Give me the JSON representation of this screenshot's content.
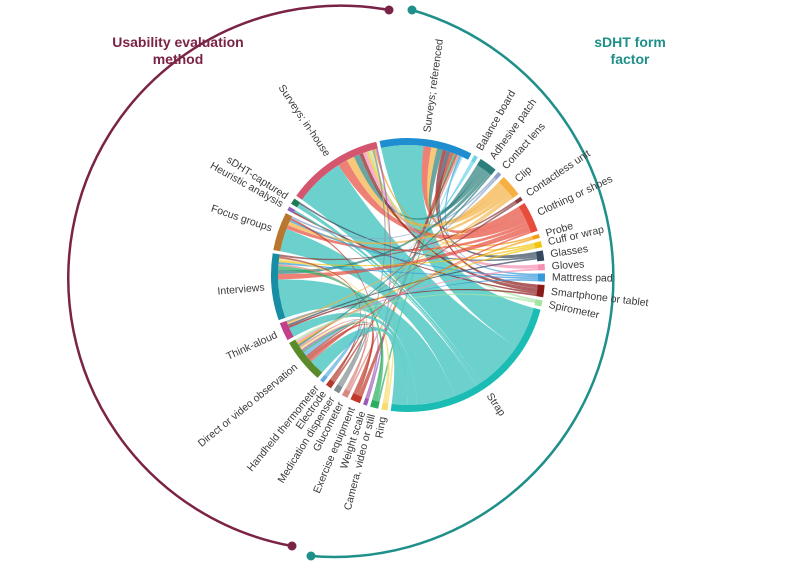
{
  "titles": {
    "left_line1": "Usability evaluation",
    "left_line2": "method",
    "right_line1": "sDHT form",
    "right_line2": "factor"
  },
  "colors": {
    "left_group": "#7b2346",
    "right_group": "#1f8f8a",
    "ribbon_main": "#4cc7c2"
  },
  "segments": [
    {
      "id": "surveys-referenced",
      "label": "Surveys; referenced",
      "side": "method",
      "weight": 46,
      "color": "#1f8ed0"
    },
    {
      "id": "balance-board",
      "label": "Balance board",
      "side": "form",
      "weight": 2,
      "color": "#6fd3e8"
    },
    {
      "id": "adhesive-patch",
      "label": "Adhesive patch",
      "side": "form",
      "weight": 9,
      "color": "#2a7f7c"
    },
    {
      "id": "contact-lens",
      "label": "Contact lens",
      "side": "form",
      "weight": 2,
      "color": "#8aa0c8"
    },
    {
      "id": "clip",
      "label": "Clip",
      "side": "form",
      "weight": 11,
      "color": "#f5b041"
    },
    {
      "id": "contactless-unit",
      "label": "Contactless unit",
      "side": "form",
      "weight": 2,
      "color": "#8a3b3b"
    },
    {
      "id": "clothing-or-shoes",
      "label": "Clothing or shoes",
      "side": "form",
      "weight": 15,
      "color": "#e74c3c"
    },
    {
      "id": "probe",
      "label": "Probe",
      "side": "form",
      "weight": 2,
      "color": "#f39c12"
    },
    {
      "id": "cuff-or-wrap",
      "label": "Cuff or wrap",
      "side": "form",
      "weight": 3,
      "color": "#f1c40f"
    },
    {
      "id": "glasses",
      "label": "Glasses",
      "side": "form",
      "weight": 5,
      "color": "#34495e"
    },
    {
      "id": "gloves",
      "label": "Gloves",
      "side": "form",
      "weight": 3,
      "color": "#f78fb3"
    },
    {
      "id": "mattress-pad",
      "label": "Mattress pad",
      "side": "form",
      "weight": 4,
      "color": "#3498db"
    },
    {
      "id": "smartphone-or-tablet",
      "label": "Smartphone or tablet",
      "side": "form",
      "weight": 6,
      "color": "#8b1a1a"
    },
    {
      "id": "spirometer",
      "label": "Spirometer",
      "side": "form",
      "weight": 3,
      "color": "#a3e4a1"
    },
    {
      "id": "strap",
      "label": "Strap",
      "side": "form",
      "weight": 96,
      "color": "#1abcb4"
    },
    {
      "id": "ring",
      "label": "Ring",
      "side": "form",
      "weight": 3,
      "color": "#f7dc6f"
    },
    {
      "id": "camera",
      "label": "Camera, video or still",
      "side": "form",
      "weight": 4,
      "color": "#27ae60"
    },
    {
      "id": "weight-scale",
      "label": "Weight scale",
      "side": "form",
      "weight": 2,
      "color": "#9b59b6"
    },
    {
      "id": "exercise-equipment",
      "label": "Exercise equipment",
      "side": "form",
      "weight": 5,
      "color": "#c0392b"
    },
    {
      "id": "glucometer",
      "label": "Glucometer",
      "side": "form",
      "weight": 3,
      "color": "#d98880"
    },
    {
      "id": "medication-dispenser",
      "label": "Medication dispenser",
      "side": "form",
      "weight": 3,
      "color": "#7f8c8d"
    },
    {
      "id": "electrode",
      "label": "Electrode",
      "side": "form",
      "weight": 3,
      "color": "#b03a2e"
    },
    {
      "id": "handheld-thermometer",
      "label": "Handheld thermometer",
      "side": "form",
      "weight": 2,
      "color": "#5dade2"
    },
    {
      "id": "direct-or-video-observation",
      "label": "Direct or video observation",
      "side": "method",
      "weight": 22,
      "color": "#5b8a2a"
    },
    {
      "id": "think-aloud",
      "label": "Think-aloud",
      "side": "method",
      "weight": 9,
      "color": "#c2408a"
    },
    {
      "id": "interviews",
      "label": "Interviews",
      "side": "method",
      "weight": 33,
      "color": "#178ea3"
    },
    {
      "id": "focus-groups",
      "label": "Focus groups",
      "side": "method",
      "weight": 19,
      "color": "#b8762e"
    },
    {
      "id": "heuristic-analysis",
      "label": "Heuristic analysis",
      "side": "method",
      "weight": 2,
      "color": "#8e63b5"
    },
    {
      "id": "sdht-captured",
      "label": "sDHT-captured",
      "side": "method",
      "weight": 3,
      "color": "#1f7a55"
    },
    {
      "id": "surveys-in-house",
      "label": "Surveys; in-house",
      "side": "method",
      "weight": 48,
      "color": "#d4556e"
    }
  ],
  "chords": [
    {
      "source": "surveys-referenced",
      "target": "strap",
      "value": 22
    },
    {
      "source": "surveys-referenced",
      "target": "clothing-or-shoes",
      "value": 4
    },
    {
      "source": "surveys-referenced",
      "target": "clip",
      "value": 3
    },
    {
      "source": "surveys-referenced",
      "target": "adhesive-patch",
      "value": 3
    },
    {
      "source": "surveys-referenced",
      "target": "smartphone-or-tablet",
      "value": 2
    },
    {
      "source": "surveys-referenced",
      "target": "glasses",
      "value": 2
    },
    {
      "source": "surveys-referenced",
      "target": "exercise-equipment",
      "value": 2
    },
    {
      "source": "surveys-referenced",
      "target": "camera",
      "value": 1
    },
    {
      "source": "surveys-referenced",
      "target": "electrode",
      "value": 1
    },
    {
      "source": "surveys-referenced",
      "target": "glucometer",
      "value": 1
    },
    {
      "source": "surveys-referenced",
      "target": "mattress-pad",
      "value": 1
    },
    {
      "source": "surveys-referenced",
      "target": "balance-board",
      "value": 1
    },
    {
      "source": "surveys-in-house",
      "target": "strap",
      "value": 26
    },
    {
      "source": "surveys-in-house",
      "target": "clothing-or-shoes",
      "value": 5
    },
    {
      "source": "surveys-in-house",
      "target": "clip",
      "value": 4
    },
    {
      "source": "surveys-in-house",
      "target": "adhesive-patch",
      "value": 3
    },
    {
      "source": "surveys-in-house",
      "target": "smartphone-or-tablet",
      "value": 2
    },
    {
      "source": "surveys-in-house",
      "target": "gloves",
      "value": 2
    },
    {
      "source": "surveys-in-house",
      "target": "cuff-or-wrap",
      "value": 1
    },
    {
      "source": "surveys-in-house",
      "target": "spirometer",
      "value": 1
    },
    {
      "source": "surveys-in-house",
      "target": "ring",
      "value": 1
    },
    {
      "source": "surveys-in-house",
      "target": "medication-dispenser",
      "value": 1
    },
    {
      "source": "surveys-in-house",
      "target": "probe",
      "value": 1
    },
    {
      "source": "surveys-in-house",
      "target": "weight-scale",
      "value": 1
    },
    {
      "source": "sdht-captured",
      "target": "strap",
      "value": 2
    },
    {
      "source": "sdht-captured",
      "target": "glasses",
      "value": 1
    },
    {
      "source": "heuristic-analysis",
      "target": "smartphone-or-tablet",
      "value": 1
    },
    {
      "source": "heuristic-analysis",
      "target": "strap",
      "value": 1
    },
    {
      "source": "focus-groups",
      "target": "strap",
      "value": 12
    },
    {
      "source": "focus-groups",
      "target": "clothing-or-shoes",
      "value": 2
    },
    {
      "source": "focus-groups",
      "target": "clip",
      "value": 2
    },
    {
      "source": "focus-groups",
      "target": "mattress-pad",
      "value": 1
    },
    {
      "source": "focus-groups",
      "target": "exercise-equipment",
      "value": 1
    },
    {
      "source": "focus-groups",
      "target": "contact-lens",
      "value": 1
    },
    {
      "source": "interviews",
      "target": "strap",
      "value": 20
    },
    {
      "source": "interviews",
      "target": "clothing-or-shoes",
      "value": 3
    },
    {
      "source": "interviews",
      "target": "adhesive-patch",
      "value": 2
    },
    {
      "source": "interviews",
      "target": "camera",
      "value": 2
    },
    {
      "source": "interviews",
      "target": "glucometer",
      "value": 1
    },
    {
      "source": "interviews",
      "target": "mattress-pad",
      "value": 1
    },
    {
      "source": "interviews",
      "target": "cuff-or-wrap",
      "value": 1
    },
    {
      "source": "interviews",
      "target": "ring",
      "value": 1
    },
    {
      "source": "interviews",
      "target": "electrode",
      "value": 1
    },
    {
      "source": "interviews",
      "target": "contactless-unit",
      "value": 1
    },
    {
      "source": "think-aloud",
      "target": "strap",
      "value": 5
    },
    {
      "source": "think-aloud",
      "target": "smartphone-or-tablet",
      "value": 1
    },
    {
      "source": "think-aloud",
      "target": "glasses",
      "value": 1
    },
    {
      "source": "think-aloud",
      "target": "clip",
      "value": 1
    },
    {
      "source": "think-aloud",
      "target": "medication-dispenser",
      "value": 1
    },
    {
      "source": "direct-or-video-observation",
      "target": "strap",
      "value": 8
    },
    {
      "source": "direct-or-video-observation",
      "target": "clothing-or-shoes",
      "value": 1
    },
    {
      "source": "direct-or-video-observation",
      "target": "exercise-equipment",
      "value": 2
    },
    {
      "source": "direct-or-video-observation",
      "target": "electrode",
      "value": 1
    },
    {
      "source": "direct-or-video-observation",
      "target": "handheld-thermometer",
      "value": 2
    },
    {
      "source": "direct-or-video-observation",
      "target": "camera",
      "value": 1
    },
    {
      "source": "direct-or-video-observation",
      "target": "weight-scale",
      "value": 1
    },
    {
      "source": "direct-or-video-observation",
      "target": "ring",
      "value": 1
    },
    {
      "source": "direct-or-video-observation",
      "target": "glucometer",
      "value": 1
    },
    {
      "source": "direct-or-video-observation",
      "target": "adhesive-patch",
      "value": 1
    },
    {
      "source": "direct-or-video-observation",
      "target": "probe",
      "value": 1
    },
    {
      "source": "direct-or-video-observation",
      "target": "gloves",
      "value": 1
    },
    {
      "source": "direct-or-video-observation",
      "target": "spirometer",
      "value": 1
    },
    {
      "source": "direct-or-video-observation",
      "target": "medication-dispenser",
      "value": 1
    },
    {
      "source": "direct-or-video-observation",
      "target": "contactless-unit",
      "value": 1
    },
    {
      "source": "direct-or-video-observation",
      "target": "balance-board",
      "value": 1
    },
    {
      "source": "direct-or-video-observation",
      "target": "contact-lens",
      "value": 1
    },
    {
      "source": "direct-or-video-observation",
      "target": "cuff-or-wrap",
      "value": 1
    },
    {
      "source": "direct-or-video-observation",
      "target": "mattress-pad",
      "value": 1
    },
    {
      "source": "direct-or-video-observation",
      "target": "clip",
      "value": 1
    },
    {
      "source": "direct-or-video-observation",
      "target": "smartphone-or-tablet",
      "value": 0
    }
  ]
}
